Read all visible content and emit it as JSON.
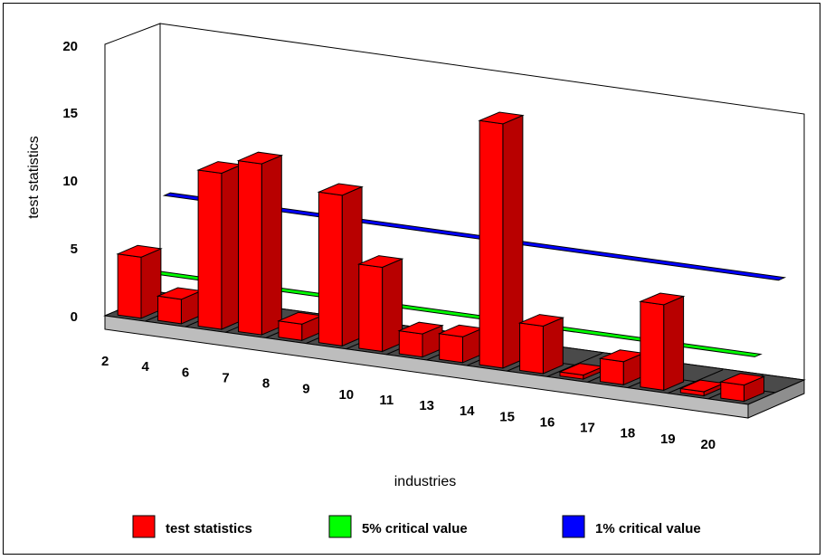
{
  "chart_data": {
    "type": "bar",
    "title": "",
    "xlabel": "industries",
    "ylabel": "test statistics",
    "ylim": [
      0,
      20
    ],
    "yticks": [
      "0",
      "5",
      "10",
      "15",
      "20"
    ],
    "categories": [
      "2",
      "4",
      "6",
      "7",
      "8",
      "9",
      "10",
      "11",
      "13",
      "14",
      "15",
      "16",
      "17",
      "18",
      "19",
      "20"
    ],
    "series": [
      {
        "name": "test statistics",
        "kind": "bar",
        "values": [
          4.5,
          1.8,
          11.5,
          12.6,
          1.2,
          11.1,
          6.2,
          1.7,
          1.9,
          18.0,
          3.5,
          0.3,
          1.7,
          6.3,
          0.3,
          1.2
        ],
        "color": "#ff0000"
      },
      {
        "name": "5% critical value",
        "kind": "band",
        "value": 2.9,
        "color": "#00ff00"
      },
      {
        "name": "1% critical value",
        "kind": "band",
        "value": 7.8,
        "color": "#0000ff"
      }
    ],
    "grid": true,
    "legend_position": "bottom"
  }
}
